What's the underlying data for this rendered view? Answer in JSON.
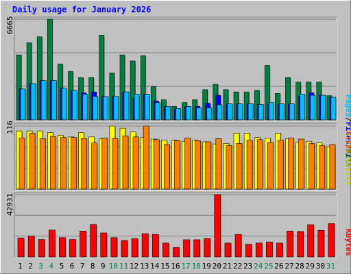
{
  "title": "Daily usage for January 2026",
  "colors": {
    "background": "#c0c0c0",
    "title": "#0000ff",
    "hits": "#008040",
    "files": "#0000ff",
    "pages": "#00c0ff",
    "visits": "#ffff00",
    "sites": "#ff8000",
    "kbytes": "#ff0000",
    "weekend": "#00804f",
    "axis_text": "#000000"
  },
  "right_labels": {
    "pages": "Pages",
    "files": "Files",
    "hits": "Hits",
    "sites": "Sites",
    "visits": "Visits",
    "kbytes": "KBytes",
    "sep": "/"
  },
  "chart_data": [
    {
      "type": "bar",
      "panel": "hits-files-pages",
      "y_label": "6665",
      "ylim": [
        0,
        6665
      ],
      "grid": true,
      "categories": [
        "1",
        "2",
        "3",
        "4",
        "5",
        "6",
        "7",
        "8",
        "9",
        "10",
        "11",
        "12",
        "13",
        "14",
        "15",
        "16",
        "17",
        "18",
        "19",
        "20",
        "21",
        "22",
        "23",
        "24",
        "25",
        "26",
        "27",
        "28",
        "29",
        "30",
        "31"
      ],
      "series": [
        {
          "name": "Hits",
          "values": [
            4300,
            5100,
            5500,
            6665,
            3700,
            3200,
            2800,
            2800,
            5600,
            3100,
            4300,
            3900,
            4250,
            2200,
            1330,
            890,
            1150,
            1330,
            2000,
            2350,
            2000,
            1850,
            1850,
            1950,
            3600,
            1750,
            2800,
            2500,
            2500,
            2500,
            1600
          ]
        },
        {
          "name": "Files",
          "values": [
            2050,
            2400,
            2600,
            2600,
            2100,
            1950,
            1790,
            1850,
            1550,
            1550,
            1850,
            1450,
            1700,
            1240,
            890,
            750,
            890,
            890,
            1100,
            1630,
            1060,
            1060,
            1060,
            1020,
            1060,
            1060,
            1060,
            1590,
            1800,
            1630,
            1500
          ]
        },
        {
          "name": "Pages",
          "values": [
            2050,
            2400,
            2600,
            2600,
            2100,
            1950,
            1700,
            1550,
            1550,
            1550,
            1850,
            1700,
            1700,
            1150,
            890,
            750,
            890,
            800,
            800,
            1000,
            1060,
            1060,
            1060,
            1020,
            1150,
            1060,
            1060,
            1700,
            1630,
            1630,
            1500
          ]
        }
      ]
    },
    {
      "type": "bar",
      "panel": "visits-sites",
      "y_label": "116",
      "ylim": [
        0,
        116
      ],
      "grid": true,
      "categories": [
        "1",
        "2",
        "3",
        "4",
        "5",
        "6",
        "7",
        "8",
        "9",
        "10",
        "11",
        "12",
        "13",
        "14",
        "15",
        "16",
        "17",
        "18",
        "19",
        "20",
        "21",
        "22",
        "23",
        "24",
        "25",
        "26",
        "27",
        "28",
        "29",
        "30",
        "31"
      ],
      "series": [
        {
          "name": "Visits",
          "values": [
            107,
            107,
            107,
            104,
            99,
            96,
            104,
            96,
            93,
            116,
            112,
            105,
            95,
            92,
            90,
            90,
            88,
            90,
            87,
            83,
            84,
            103,
            103,
            95,
            94,
            103,
            93,
            86,
            88,
            85,
            78
          ]
        },
        {
          "name": "Sites",
          "values": [
            94,
            103,
            93,
            97,
            95,
            95,
            93,
            85,
            94,
            93,
            98,
            96,
            116,
            91,
            82,
            89,
            94,
            89,
            87,
            93,
            80,
            84,
            90,
            91,
            86,
            90,
            94,
            92,
            84,
            80,
            82
          ]
        }
      ]
    },
    {
      "type": "bar",
      "panel": "kbytes",
      "y_label": "42931",
      "ylim": [
        0,
        42931
      ],
      "grid": true,
      "categories": [
        "1",
        "2",
        "3",
        "4",
        "5",
        "6",
        "7",
        "8",
        "9",
        "10",
        "11",
        "12",
        "13",
        "14",
        "15",
        "16",
        "17",
        "18",
        "19",
        "20",
        "21",
        "22",
        "23",
        "24",
        "25",
        "26",
        "27",
        "28",
        "29",
        "30",
        "31"
      ],
      "series": [
        {
          "name": "KBytes",
          "values": [
            13000,
            14300,
            12000,
            18500,
            13300,
            12000,
            17800,
            22300,
            16500,
            13300,
            11300,
            12500,
            16000,
            15500,
            9500,
            6500,
            11800,
            11800,
            12600,
            42931,
            9500,
            15500,
            8700,
            9500,
            10300,
            9500,
            17800,
            17500,
            22200,
            18300,
            22900
          ]
        }
      ]
    }
  ],
  "x_axis": {
    "labels": [
      "1",
      "2",
      "3",
      "4",
      "5",
      "6",
      "7",
      "8",
      "9",
      "10",
      "11",
      "12",
      "13",
      "14",
      "15",
      "16",
      "17",
      "18",
      "19",
      "20",
      "21",
      "22",
      "23",
      "24",
      "25",
      "26",
      "27",
      "28",
      "29",
      "30",
      "31"
    ],
    "weekend": [
      3,
      4,
      10,
      11,
      17,
      18,
      24,
      25,
      31
    ]
  }
}
